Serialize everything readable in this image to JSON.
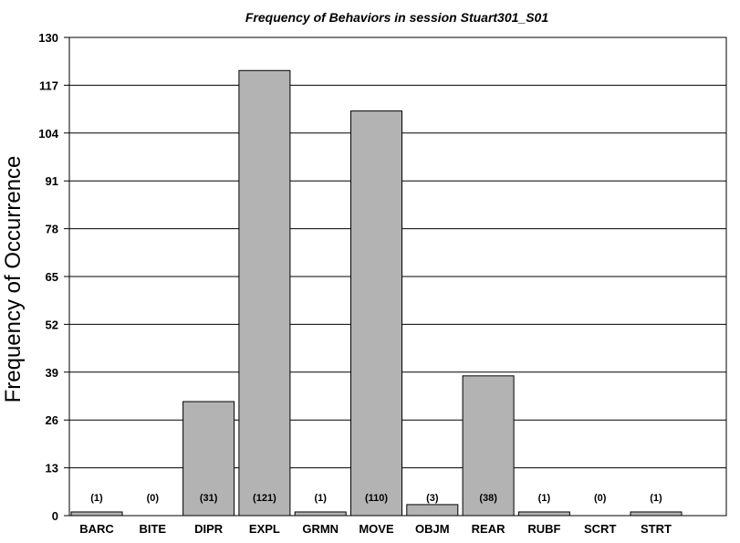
{
  "chart_data": {
    "type": "bar",
    "title": "Frequency of Behaviors in session Stuart301_S01",
    "xlabel": "",
    "ylabel": "Frequency of Occurrence",
    "ylim": [
      0,
      130
    ],
    "yticks": [
      0,
      13,
      26,
      39,
      52,
      65,
      78,
      91,
      104,
      117,
      130
    ],
    "grid": true,
    "categories": [
      "BARC",
      "BITE",
      "DIPR",
      "EXPL",
      "GRMN",
      "MOVE",
      "OBJM",
      "REAR",
      "RUBF",
      "SCRT",
      "STRT"
    ],
    "values": [
      1,
      0,
      31,
      121,
      1,
      110,
      3,
      38,
      1,
      0,
      1
    ],
    "data_labels": [
      "(1)",
      "(0)",
      "(31)",
      "(121)",
      "(1)",
      "(110)",
      "(3)",
      "(38)",
      "(1)",
      "(0)",
      "(1)"
    ],
    "colors": {
      "bar": "#b3b3b3",
      "background": "#ffffff",
      "gridline": "#000000"
    }
  }
}
